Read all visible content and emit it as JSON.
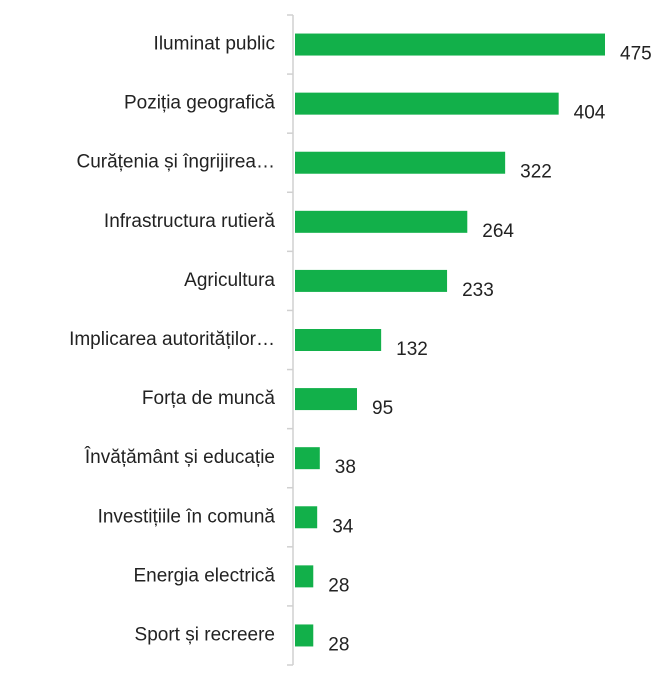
{
  "chart_data": {
    "type": "bar",
    "orientation": "horizontal",
    "categories": [
      "Iluminat public",
      "Poziția geografică",
      "Curățenia și îngrijirea…",
      "Infrastructura rutieră",
      "Agricultura",
      "Implicarea autorităților…",
      "Forța de muncă",
      "Învățământ și educație",
      "Investițiile în comună",
      "Energia electrică",
      "Sport și recreere"
    ],
    "values": [
      475,
      404,
      322,
      264,
      233,
      132,
      95,
      38,
      34,
      28,
      28
    ],
    "color": "#12b04a"
  }
}
